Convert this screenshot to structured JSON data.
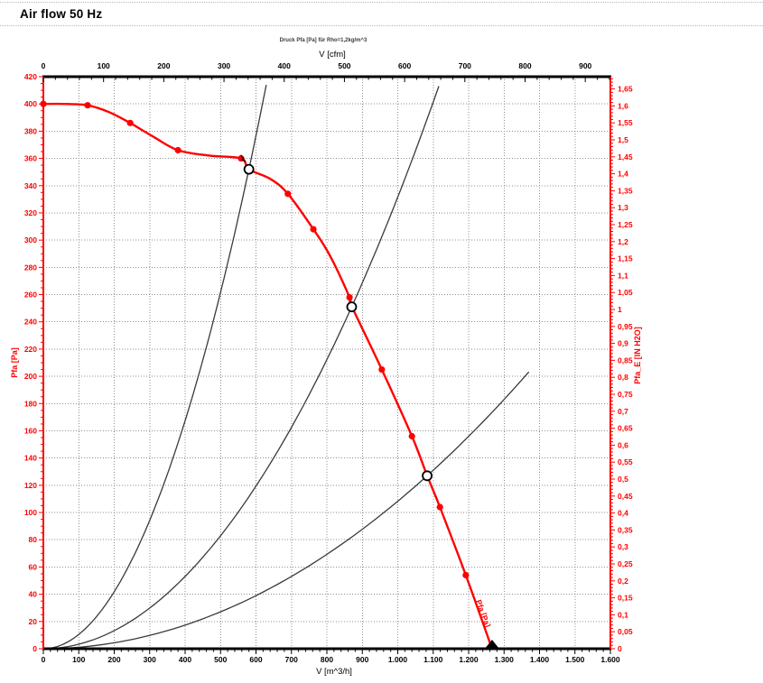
{
  "header": {
    "title": "Air flow 50 Hz"
  },
  "chart_data": {
    "type": "line",
    "title": "Druck Pfa [Pa] für Rho=1,2kg/m^3",
    "grid": true,
    "colors": {
      "accent": "#ff0000",
      "system_curve": "#3a3a3a",
      "grid": "#8f8f8f",
      "axis_black": "#000000"
    },
    "axes": {
      "bottom": {
        "label": "V [m^3/h]",
        "min": 0,
        "max": 1600,
        "major": 100,
        "minor": 20,
        "tick_labels": [
          "0",
          "100",
          "200",
          "300",
          "400",
          "500",
          "600",
          "700",
          "800",
          "900",
          "1.000",
          "1.100",
          "1.200",
          "1.300",
          "1.400",
          "1.500",
          "1.600"
        ]
      },
      "top": {
        "label": "V [cfm]",
        "min": 0,
        "max": 941.7,
        "major": 100,
        "minor": 20,
        "tick_labels": [
          "0",
          "100",
          "200",
          "300",
          "400",
          "500",
          "600",
          "700",
          "800",
          "900"
        ]
      },
      "left": {
        "label": "Pfa [Pa]",
        "min": 0,
        "max": 420,
        "major": 20,
        "minor": 5,
        "color": "#ff0000",
        "tick_labels": [
          "0",
          "20",
          "40",
          "60",
          "80",
          "100",
          "120",
          "140",
          "160",
          "180",
          "200",
          "220",
          "240",
          "260",
          "280",
          "300",
          "320",
          "340",
          "360",
          "380",
          "400",
          "420"
        ]
      },
      "right": {
        "label": "Pfa_E [IN H2O]",
        "min": 0,
        "max": 1.686,
        "major": 0.05,
        "minor": 0.01,
        "color": "#ff0000",
        "pa_per_unit": 249.089,
        "tick_labels": [
          "0",
          "0,05",
          "0,1",
          "0,15",
          "0,2",
          "0,25",
          "0,3",
          "0,35",
          "0,4",
          "0,45",
          "0,5",
          "0,55",
          "0,6",
          "0,65",
          "0,7",
          "0,75",
          "0,8",
          "0,85",
          "0,9",
          "0,95",
          "1",
          "1,05",
          "1,1",
          "1,15",
          "1,2",
          "1,25",
          "1,3",
          "1,35",
          "1,4",
          "1,45",
          "1,5",
          "1,55",
          "1,6",
          "1,65"
        ]
      }
    },
    "series": [
      {
        "name": "fan-curve",
        "color": "#ff0000",
        "curve_label": "Pfa [Pa]",
        "points": [
          [
            0,
            400
          ],
          [
            60,
            400
          ],
          [
            125,
            399
          ],
          [
            185,
            394
          ],
          [
            245,
            386
          ],
          [
            310,
            376
          ],
          [
            380,
            366
          ],
          [
            470,
            362
          ],
          [
            558,
            360
          ],
          [
            580,
            352
          ],
          [
            640,
            345
          ],
          [
            690,
            334
          ],
          [
            762,
            308
          ],
          [
            810,
            288
          ],
          [
            864,
            258
          ],
          [
            871,
            251
          ],
          [
            955,
            205
          ],
          [
            1040,
            156
          ],
          [
            1083,
            127
          ],
          [
            1119,
            104
          ],
          [
            1192,
            54
          ],
          [
            1266,
            0
          ]
        ],
        "measured_points": [
          [
            0,
            400
          ],
          [
            125,
            399
          ],
          [
            245,
            386
          ],
          [
            380,
            366
          ],
          [
            558,
            360
          ],
          [
            690,
            334
          ],
          [
            762,
            308
          ],
          [
            864,
            258
          ],
          [
            955,
            205
          ],
          [
            1040,
            156
          ],
          [
            1119,
            104
          ],
          [
            1192,
            54
          ]
        ]
      }
    ],
    "operating_points": [
      {
        "v": 580,
        "p": 352
      },
      {
        "v": 870,
        "p": 251
      },
      {
        "v": 1083,
        "p": 127
      }
    ],
    "system_curves": [
      {
        "name": "system-curve-1",
        "through_op": 0,
        "v_end": 629
      },
      {
        "name": "system-curve-2",
        "through_op": 1,
        "v_end": 1116
      },
      {
        "name": "system-curve-3",
        "through_op": 2,
        "v_end": 1370
      }
    ]
  }
}
